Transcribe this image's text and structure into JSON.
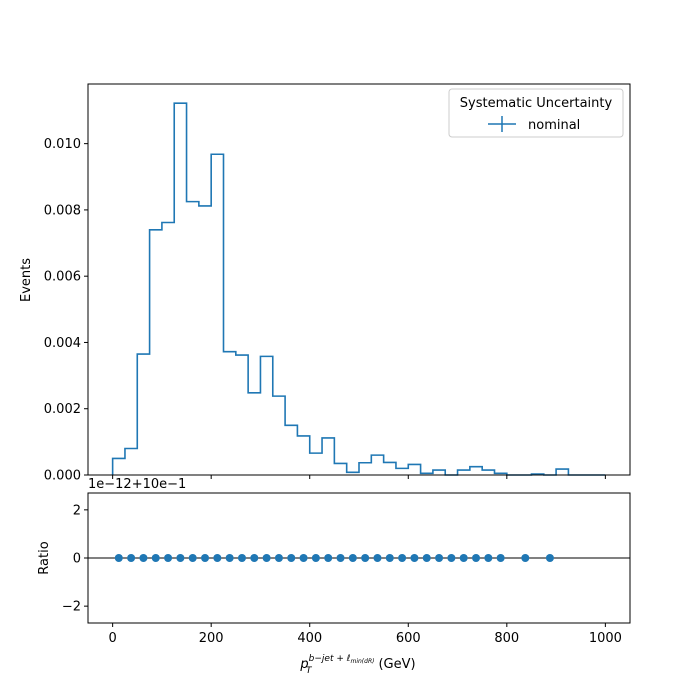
{
  "chart_data": [
    {
      "type": "histogram",
      "panel": "main",
      "ylabel": "Events",
      "xlim": [
        -50,
        1050
      ],
      "ylim": [
        0,
        0.0118
      ],
      "x_ticks": [
        "0",
        "200",
        "400",
        "600",
        "800",
        "1000"
      ],
      "y_ticks": [
        {
          "v": 0.0,
          "label": "0.000"
        },
        {
          "v": 0.002,
          "label": "0.002"
        },
        {
          "v": 0.004,
          "label": "0.004"
        },
        {
          "v": 0.006,
          "label": "0.006"
        },
        {
          "v": 0.008,
          "label": "0.008"
        },
        {
          "v": 0.01,
          "label": "0.010"
        }
      ],
      "bin_edges": [
        0,
        25,
        50,
        75,
        100,
        125,
        150,
        175,
        200,
        225,
        250,
        275,
        300,
        325,
        350,
        375,
        400,
        425,
        450,
        475,
        500,
        525,
        550,
        575,
        600,
        625,
        650,
        675,
        700,
        725,
        750,
        775,
        800,
        825,
        850,
        875,
        900,
        925,
        950,
        975,
        1000
      ],
      "series": [
        {
          "name": "nominal",
          "color": "#1f77b4",
          "values": [
            0.0005,
            0.0008,
            0.00365,
            0.0074,
            0.00762,
            0.01122,
            0.00825,
            0.00812,
            0.00968,
            0.00372,
            0.00362,
            0.00248,
            0.00358,
            0.00238,
            0.0015,
            0.00118,
            0.00066,
            0.00112,
            0.00035,
            8e-05,
            0.00037,
            0.0006,
            0.00038,
            0.0002,
            0.00032,
            5e-05,
            0.00015,
            0.0,
            0.00015,
            0.00025,
            0.00015,
            5e-05,
            0.0,
            0.0,
            3e-05,
            0.0,
            0.00018,
            0.0,
            0.0,
            0.0
          ]
        }
      ],
      "legend": {
        "title": "Systematic Uncertainty",
        "entries": [
          "nominal"
        ],
        "position": "upper right"
      }
    },
    {
      "type": "scatter",
      "panel": "ratio",
      "ylabel": "Ratio",
      "xlabel_prefix": "p",
      "xlabel_sub": "T",
      "xlabel_sup": "b−jet + ℓ",
      "xlabel_sup_sub": "min(dR)",
      "xlabel_unit": "(GeV)",
      "offset_text": "1e−12+10e−1",
      "xlim": [
        -50,
        1050
      ],
      "ylim": [
        -2.7,
        2.7
      ],
      "y_ticks": [
        {
          "v": 2,
          "label": "2"
        },
        {
          "v": 0,
          "label": "0"
        },
        {
          "v": -2,
          "label": "−2"
        }
      ],
      "reference_line": 0,
      "x": [
        12.5,
        37.5,
        62.5,
        87.5,
        112.5,
        137.5,
        162.5,
        187.5,
        212.5,
        237.5,
        262.5,
        287.5,
        312.5,
        337.5,
        362.5,
        387.5,
        412.5,
        437.5,
        462.5,
        487.5,
        512.5,
        537.5,
        562.5,
        587.5,
        612.5,
        637.5,
        662.5,
        687.5,
        712.5,
        737.5,
        762.5,
        787.5,
        837.5,
        887.5
      ],
      "y": [
        0,
        0,
        0,
        0,
        0,
        0,
        0,
        0,
        0,
        0,
        0,
        0,
        0,
        0,
        0,
        0,
        0,
        0,
        0,
        0,
        0,
        0,
        0,
        0,
        0,
        0,
        0,
        0,
        0,
        0,
        0,
        0,
        0,
        0
      ],
      "color": "#1f77b4"
    }
  ]
}
